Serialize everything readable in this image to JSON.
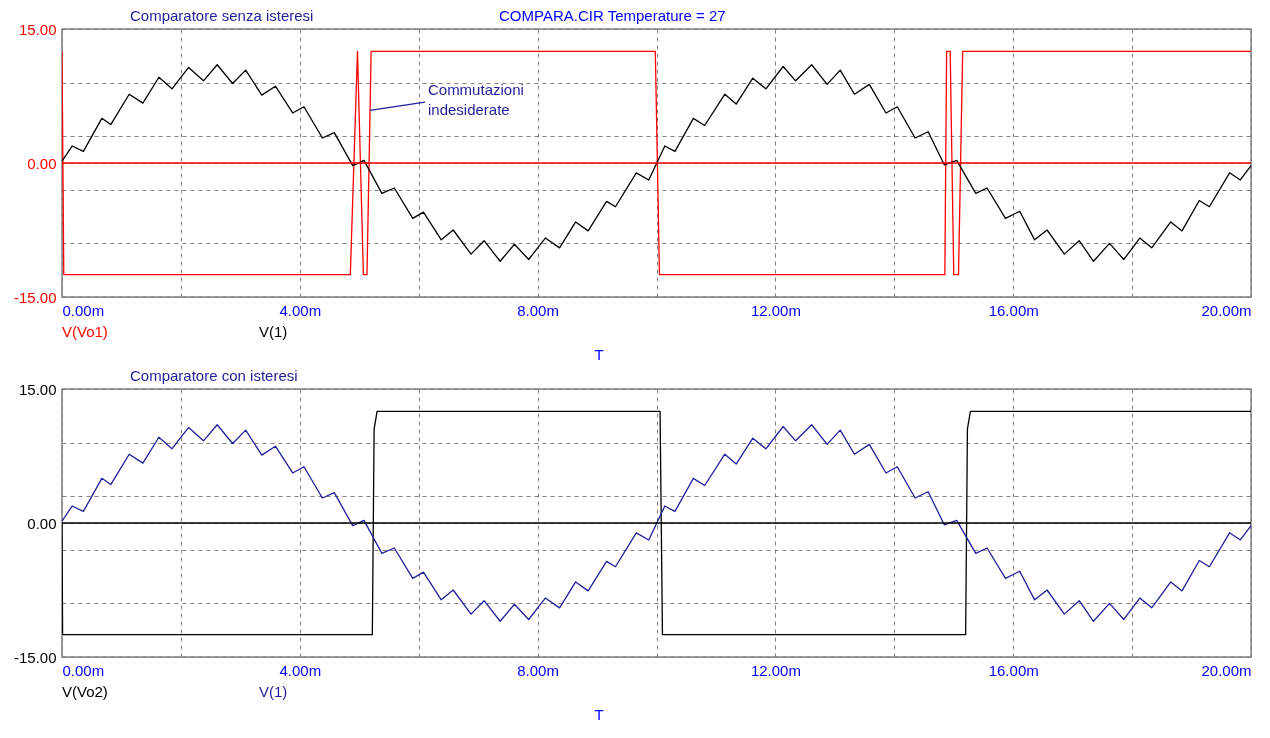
{
  "chart_data": [
    {
      "type": "line",
      "title": "Comparatore senza isteresi",
      "subtitle": "COMPARA.CIR Temperature = 27",
      "xlabel": "T",
      "legend": "bottom",
      "grid": true,
      "xlim": [
        0,
        20
      ],
      "xticks": [
        {
          "value": 0,
          "label": "0.00m"
        },
        {
          "value": 2,
          "label": null
        },
        {
          "value": 4,
          "label": "4.00m"
        },
        {
          "value": 6,
          "label": null
        },
        {
          "value": 8,
          "label": "8.00m"
        },
        {
          "value": 10,
          "label": null
        },
        {
          "value": 12,
          "label": "12.00m"
        },
        {
          "value": 14,
          "label": null
        },
        {
          "value": 16,
          "label": "16.00m"
        },
        {
          "value": 18,
          "label": null
        },
        {
          "value": 20,
          "label": "20.00m"
        }
      ],
      "ylim": [
        -15,
        15
      ],
      "yticks": [
        {
          "value": -15,
          "label": "-15.00"
        },
        {
          "value": -9,
          "label": null
        },
        {
          "value": -3,
          "label": null
        },
        {
          "value": 0,
          "label": "0.00"
        },
        {
          "value": 3,
          "label": null
        },
        {
          "value": 9,
          "label": null
        },
        {
          "value": 15,
          "label": "15.00"
        }
      ],
      "ref_lines": [
        {
          "axis": "y",
          "value": 0,
          "color": "#ff0000"
        }
      ],
      "annotations": [
        {
          "text": "Commutazioni\nindesiderate",
          "x": 5.18,
          "y": 5.9
        }
      ],
      "series": [
        {
          "name": "V(Vo1)",
          "color": "#ff0000",
          "x": [
            0,
            0.03,
            4.85,
            4.97,
            5.07,
            5.13,
            5.2,
            9.98,
            10.05,
            14.85,
            14.88,
            14.94,
            15.0,
            15.08,
            15.15,
            20
          ],
          "values": [
            12.5,
            -12.5,
            -12.5,
            12.5,
            -12.5,
            -12.5,
            12.5,
            12.5,
            -12.5,
            -12.5,
            12.5,
            12.5,
            -12.5,
            -12.5,
            12.5,
            12.5
          ]
        },
        {
          "name": "V(1)",
          "color": "#000000",
          "x": [
            0,
            0.17,
            0.36,
            0.67,
            0.82,
            1.13,
            1.36,
            1.63,
            1.85,
            2.13,
            2.38,
            2.61,
            2.87,
            3.09,
            3.36,
            3.59,
            3.88,
            4.07,
            4.38,
            4.58,
            4.89,
            5.08,
            5.38,
            5.59,
            5.9,
            6.08,
            6.38,
            6.58,
            6.88,
            7.1,
            7.37,
            7.61,
            7.85,
            8.13,
            8.37,
            8.64,
            8.85,
            9.16,
            9.31,
            9.66,
            9.87,
            10.14,
            10.31,
            10.62,
            10.81,
            11.15,
            11.34,
            11.62,
            11.84,
            12.13,
            12.34,
            12.61,
            12.87,
            13.09,
            13.33,
            13.58,
            13.86,
            14.05,
            14.35,
            14.57,
            14.84,
            15.05,
            15.37,
            15.56,
            15.87,
            16.11,
            16.36,
            16.57,
            16.86,
            17.11,
            17.35,
            17.62,
            17.86,
            18.13,
            18.33,
            18.65,
            18.84,
            19.13,
            19.3,
            19.64,
            19.82,
            20
          ],
          "values": [
            0.2,
            1.9,
            1.3,
            5.0,
            4.3,
            7.7,
            6.7,
            9.6,
            8.3,
            10.7,
            9.2,
            11.0,
            8.9,
            10.4,
            7.6,
            8.6,
            5.6,
            6.3,
            2.8,
            3.4,
            -0.3,
            0.3,
            -3.4,
            -2.8,
            -6.2,
            -5.5,
            -8.6,
            -7.5,
            -10.2,
            -8.7,
            -11.0,
            -9.1,
            -10.8,
            -8.4,
            -9.5,
            -6.6,
            -7.6,
            -4.3,
            -4.9,
            -1.1,
            -1.9,
            1.9,
            1.3,
            5.0,
            4.2,
            7.7,
            6.6,
            9.5,
            8.3,
            10.8,
            9.2,
            11.0,
            8.8,
            10.4,
            7.7,
            8.8,
            5.6,
            6.3,
            2.8,
            3.5,
            -0.2,
            0.3,
            -3.4,
            -2.8,
            -6.2,
            -5.4,
            -8.6,
            -7.5,
            -10.2,
            -8.7,
            -11.0,
            -9.0,
            -10.8,
            -8.4,
            -9.5,
            -6.6,
            -7.6,
            -4.2,
            -4.9,
            -1.1,
            -1.9,
            -0.3
          ]
        }
      ]
    },
    {
      "type": "line",
      "title": "Comparatore con isteresi",
      "xlabel": "T",
      "legend": "bottom",
      "grid": true,
      "xlim": [
        0,
        20
      ],
      "xticks": [
        {
          "value": 0,
          "label": "0.00m"
        },
        {
          "value": 2,
          "label": null
        },
        {
          "value": 4,
          "label": "4.00m"
        },
        {
          "value": 6,
          "label": null
        },
        {
          "value": 8,
          "label": "8.00m"
        },
        {
          "value": 10,
          "label": null
        },
        {
          "value": 12,
          "label": "12.00m"
        },
        {
          "value": 14,
          "label": null
        },
        {
          "value": 16,
          "label": "16.00m"
        },
        {
          "value": 18,
          "label": null
        },
        {
          "value": 20,
          "label": "20.00m"
        }
      ],
      "ylim": [
        -15,
        15
      ],
      "yticks": [
        {
          "value": -15,
          "label": "-15.00"
        },
        {
          "value": -9,
          "label": null
        },
        {
          "value": -3,
          "label": null
        },
        {
          "value": 0,
          "label": "0.00"
        },
        {
          "value": 3,
          "label": null
        },
        {
          "value": 9,
          "label": null
        },
        {
          "value": 15,
          "label": "15.00"
        }
      ],
      "ref_lines": [
        {
          "axis": "y",
          "value": 0,
          "color": "#000000"
        }
      ],
      "series": [
        {
          "name": "V(Vo2)",
          "color": "#000000",
          "x": [
            0,
            0.01,
            5.22,
            5.25,
            5.3,
            10.06,
            10.1,
            15.2,
            15.23,
            15.28,
            20
          ],
          "values": [
            0,
            -12.5,
            -12.5,
            10.5,
            12.5,
            12.5,
            -12.5,
            -12.5,
            10.5,
            12.5,
            12.5
          ]
        },
        {
          "name": "V(1)",
          "color": "#1f1f9a",
          "x": [
            0,
            0.17,
            0.36,
            0.67,
            0.82,
            1.13,
            1.36,
            1.63,
            1.85,
            2.13,
            2.38,
            2.61,
            2.87,
            3.09,
            3.36,
            3.59,
            3.88,
            4.07,
            4.38,
            4.58,
            4.89,
            5.08,
            5.38,
            5.59,
            5.9,
            6.08,
            6.38,
            6.58,
            6.88,
            7.1,
            7.37,
            7.61,
            7.85,
            8.13,
            8.37,
            8.64,
            8.85,
            9.16,
            9.31,
            9.66,
            9.87,
            10.14,
            10.31,
            10.62,
            10.81,
            11.15,
            11.34,
            11.62,
            11.84,
            12.13,
            12.34,
            12.61,
            12.87,
            13.09,
            13.33,
            13.58,
            13.86,
            14.05,
            14.35,
            14.57,
            14.84,
            15.05,
            15.37,
            15.56,
            15.87,
            16.11,
            16.36,
            16.57,
            16.86,
            17.11,
            17.35,
            17.62,
            17.86,
            18.13,
            18.33,
            18.65,
            18.84,
            19.13,
            19.3,
            19.64,
            19.82,
            20
          ],
          "values": [
            0.2,
            1.9,
            1.3,
            5.0,
            4.3,
            7.7,
            6.7,
            9.6,
            8.3,
            10.7,
            9.2,
            11.0,
            8.9,
            10.4,
            7.6,
            8.6,
            5.6,
            6.3,
            2.8,
            3.4,
            -0.3,
            0.3,
            -3.4,
            -2.8,
            -6.2,
            -5.5,
            -8.6,
            -7.5,
            -10.2,
            -8.7,
            -11.0,
            -9.1,
            -10.8,
            -8.4,
            -9.5,
            -6.6,
            -7.6,
            -4.3,
            -4.9,
            -1.1,
            -1.9,
            1.9,
            1.3,
            5.0,
            4.2,
            7.7,
            6.6,
            9.5,
            8.3,
            10.8,
            9.2,
            11.0,
            8.8,
            10.4,
            7.7,
            8.8,
            5.6,
            6.3,
            2.8,
            3.5,
            -0.2,
            0.3,
            -3.4,
            -2.8,
            -6.2,
            -5.4,
            -8.6,
            -7.5,
            -10.2,
            -8.7,
            -11.0,
            -9.0,
            -10.8,
            -8.4,
            -9.5,
            -6.6,
            -7.6,
            -4.2,
            -4.9,
            -1.1,
            -1.9,
            -0.3
          ]
        }
      ]
    }
  ]
}
